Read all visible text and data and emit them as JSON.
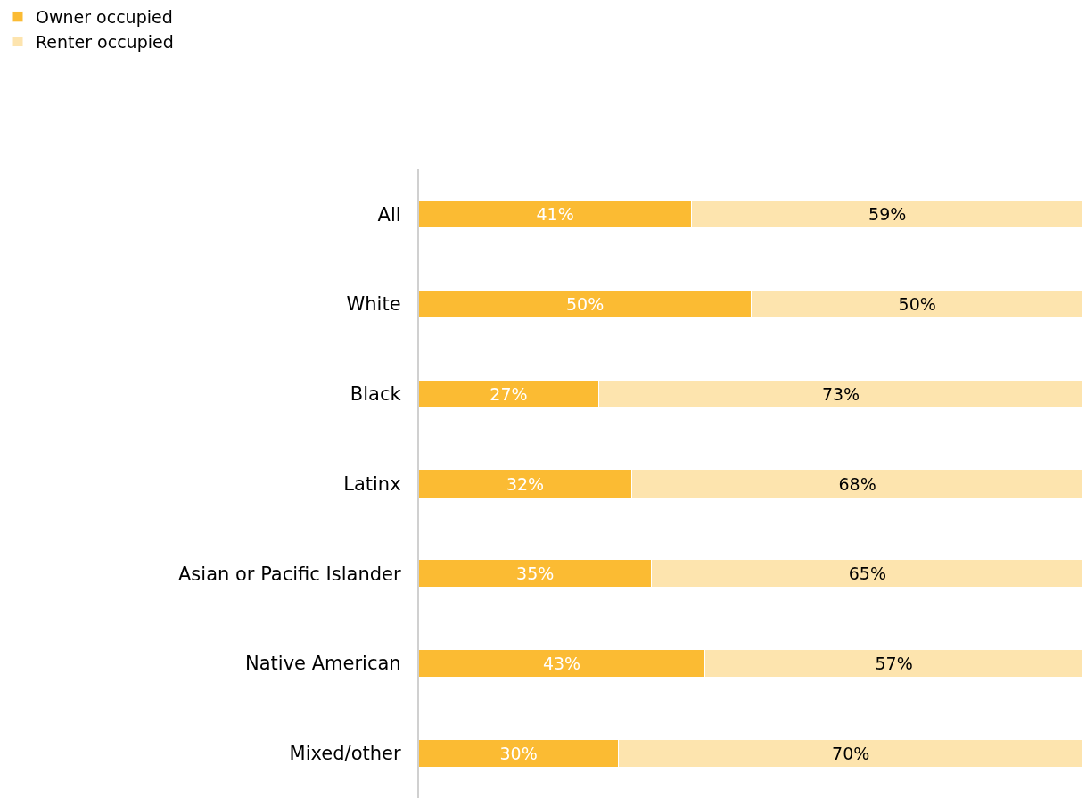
{
  "chart_data": {
    "type": "bar",
    "orientation": "horizontal",
    "stacked": true,
    "legend": "top left",
    "tick_labels": "y",
    "grid": false,
    "xlim": [
      0,
      100
    ],
    "categories": [
      "All",
      "White",
      "Black",
      "Latinx",
      "Asian or Pacific Islander",
      "Native American",
      "Mixed/other"
    ],
    "series": [
      {
        "name": "Owner occupied",
        "color": "#fbbb33",
        "values": [
          41,
          50,
          27,
          32,
          35,
          43,
          30
        ],
        "value_labels": [
          "41%",
          "50%",
          "27%",
          "32%",
          "35%",
          "43%",
          "30%"
        ]
      },
      {
        "name": "Renter occupied",
        "color": "#fde4ae",
        "values": [
          59,
          50,
          73,
          68,
          65,
          57,
          70
        ],
        "value_labels": [
          "59%",
          "50%",
          "73%",
          "68%",
          "65%",
          "57%",
          "70%"
        ]
      }
    ]
  }
}
